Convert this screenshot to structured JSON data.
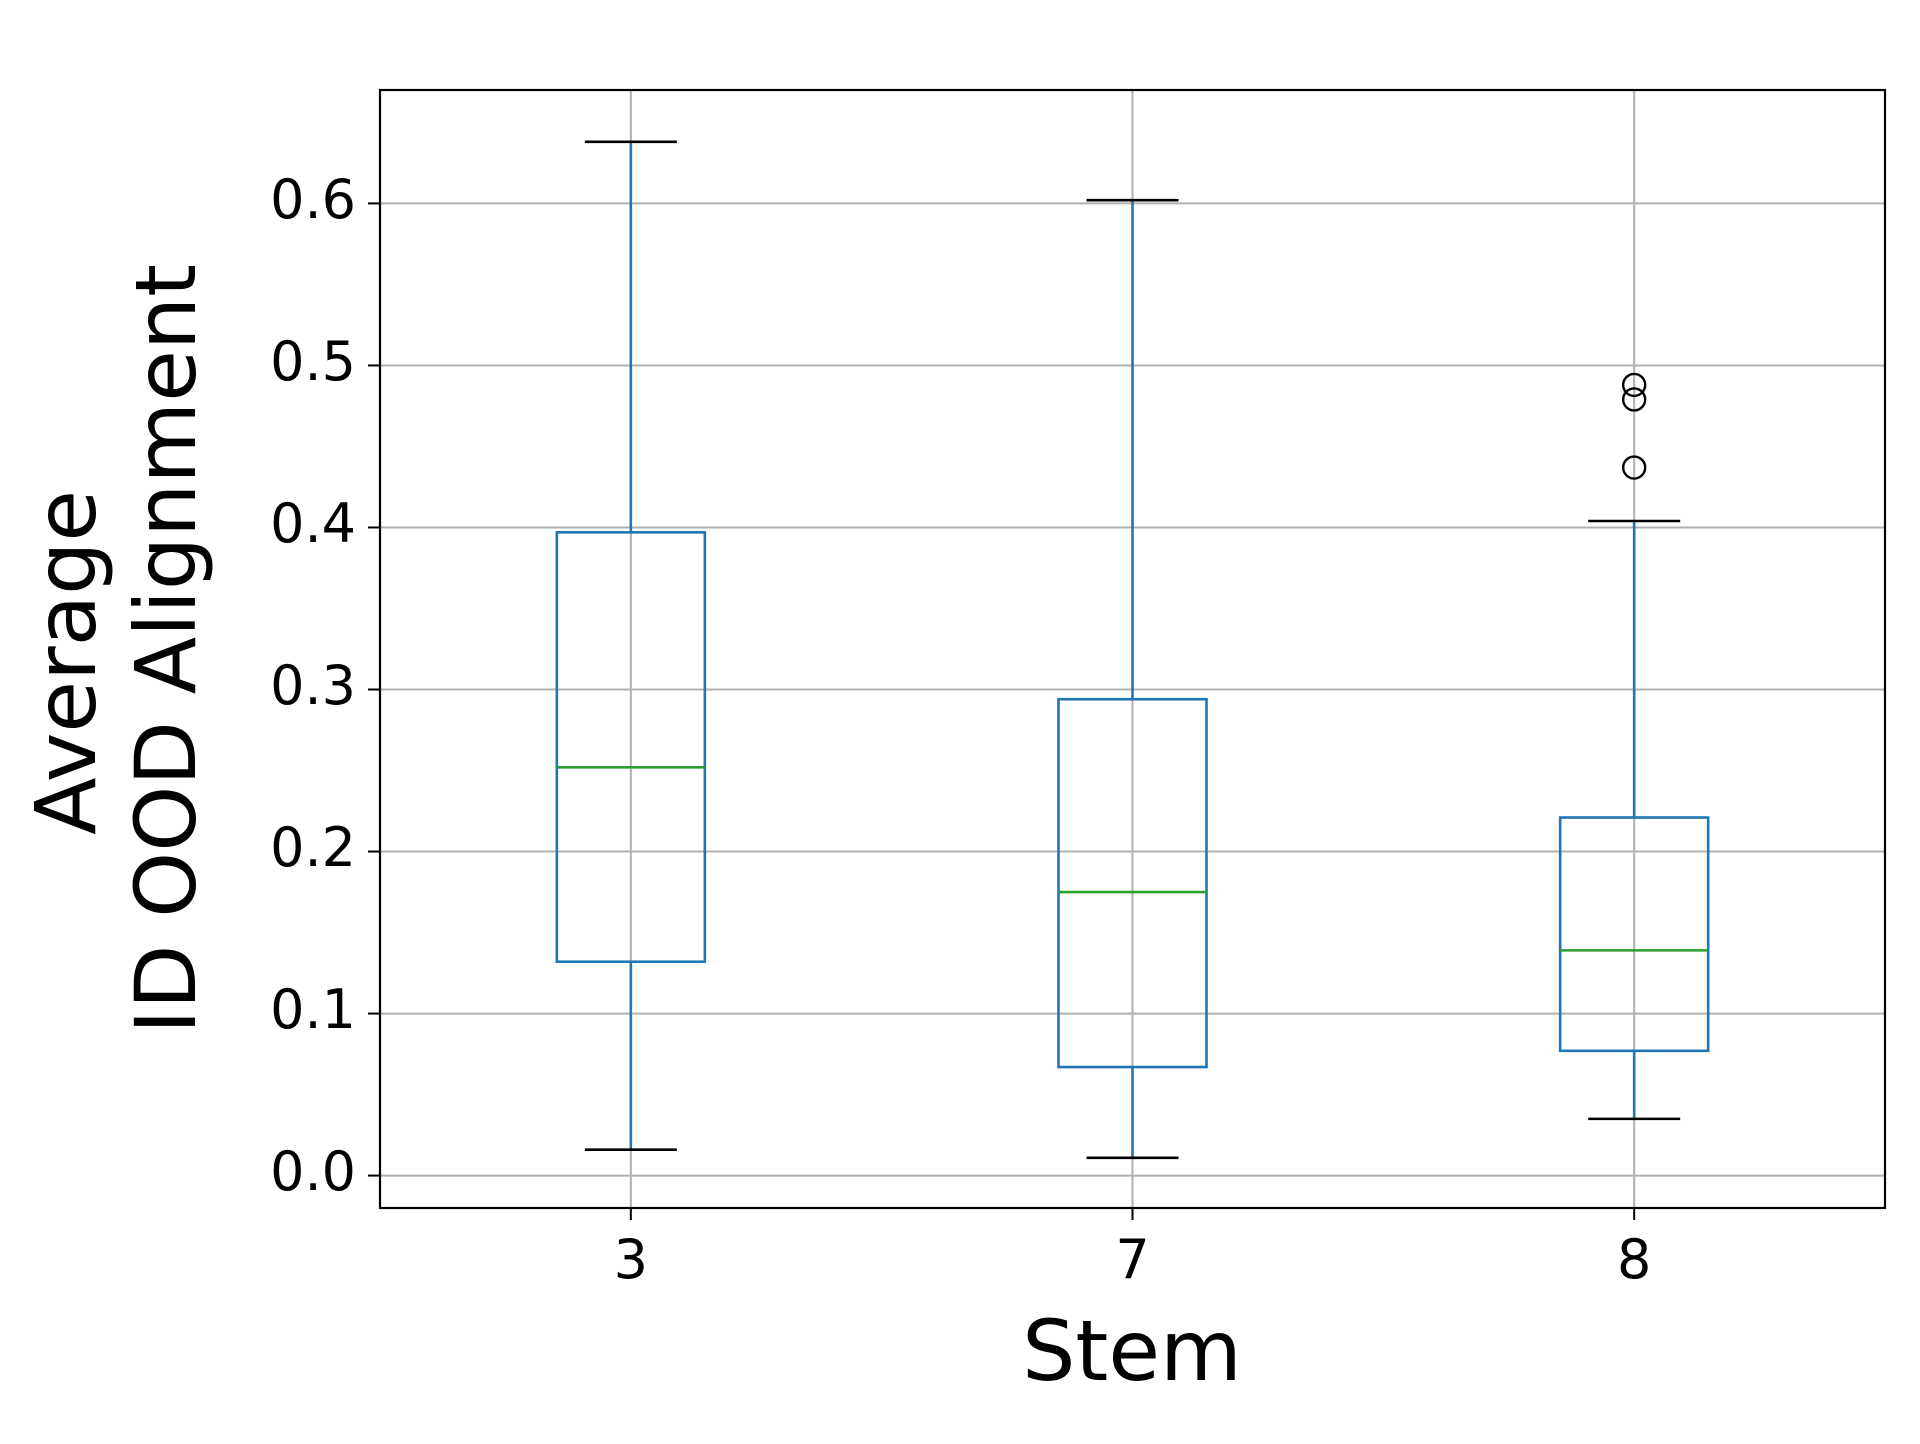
{
  "chart_data": {
    "type": "box",
    "xlabel": "Stem",
    "ylabel_lines": [
      "Average",
      "ID OOD Alignment"
    ],
    "categories": [
      "3",
      "7",
      "8"
    ],
    "ylim": [
      -0.02,
      0.67
    ],
    "yticks": [
      0.0,
      0.1,
      0.2,
      0.3,
      0.4,
      0.5,
      0.6
    ],
    "ytick_labels": [
      "0.0",
      "0.1",
      "0.2",
      "0.3",
      "0.4",
      "0.5",
      "0.6"
    ],
    "grid": true,
    "boxes": [
      {
        "category": "3",
        "whisker_low": 0.016,
        "q1": 0.132,
        "median": 0.252,
        "q3": 0.397,
        "whisker_high": 0.638,
        "outliers": []
      },
      {
        "category": "7",
        "whisker_low": 0.011,
        "q1": 0.067,
        "median": 0.175,
        "q3": 0.294,
        "whisker_high": 0.602,
        "outliers": []
      },
      {
        "category": "8",
        "whisker_low": 0.035,
        "q1": 0.077,
        "median": 0.139,
        "q3": 0.221,
        "whisker_high": 0.404,
        "outliers": [
          0.437,
          0.479,
          0.488
        ]
      }
    ],
    "colors": {
      "box": "#1f77b4",
      "median": "#2ca02c",
      "whisker_cap": "#000000",
      "grid": "#b0b0b0",
      "axes": "#000000"
    }
  }
}
